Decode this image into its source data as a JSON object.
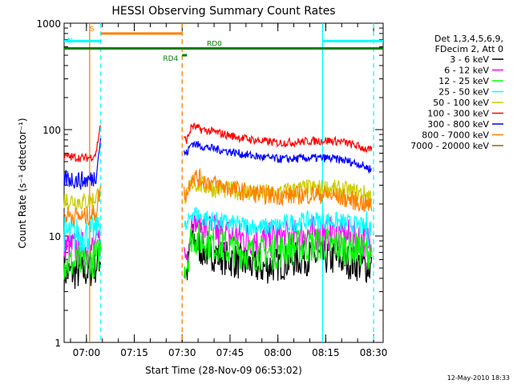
{
  "chart_data": {
    "type": "line",
    "title": "HESSI Observing Summary Count Rates",
    "xlabel": "Start Time (28-Nov-09 06:53:02)",
    "ylabel": "Count Rate (s⁻¹ detector⁻¹)",
    "yscale": "log",
    "ylim": [
      1,
      1000
    ],
    "xlim_minutes": [
      0,
      100
    ],
    "x_unit": "minutes after 06:53:02",
    "x_ticks": [
      {
        "t": 7.0,
        "label": "07:00"
      },
      {
        "t": 22.0,
        "label": "07:15"
      },
      {
        "t": 37.0,
        "label": "07:30"
      },
      {
        "t": 52.0,
        "label": "07:45"
      },
      {
        "t": 67.0,
        "label": "08:00"
      },
      {
        "t": 82.0,
        "label": "08:15"
      },
      {
        "t": 97.0,
        "label": "08:30"
      }
    ],
    "y_ticks": [
      1,
      10,
      100,
      1000
    ],
    "y_tick_labels": [
      "1",
      "10",
      "100",
      "1000"
    ],
    "legend": {
      "position": "right",
      "header": [
        "Det 1,3,4,5,6,9,",
        "FDecim 2, Att 0"
      ]
    },
    "series": [
      {
        "name": "3 - 6 keV",
        "color": "#000000",
        "x": [
          0,
          3,
          6,
          8.5,
          10,
          11.5,
          37.5,
          38.5,
          40,
          43,
          47,
          52,
          57,
          62,
          67,
          72,
          77,
          82,
          87,
          92,
          96.5
        ],
        "y": [
          4.5,
          4.5,
          4.6,
          4.8,
          5.2,
          6.5,
          null,
          4.5,
          9.5,
          7.5,
          6.8,
          6.0,
          5.5,
          5.0,
          5.5,
          6.0,
          6.3,
          6.3,
          6.0,
          5.5,
          5.0
        ]
      },
      {
        "name": "6 - 12 keV",
        "color": "#ff00ff",
        "x": [
          0,
          3,
          6,
          8.5,
          10,
          11.5,
          37.5,
          38.5,
          40,
          43,
          47,
          52,
          57,
          62,
          67,
          72,
          77,
          82,
          87,
          92,
          96.5
        ],
        "y": [
          8.0,
          7.8,
          7.6,
          7.5,
          8.0,
          9.5,
          null,
          6.5,
          14,
          12,
          11,
          10,
          9.5,
          9.0,
          9.5,
          10,
          10.5,
          10.5,
          10,
          9.5,
          9.0
        ]
      },
      {
        "name": "12 - 25 keV",
        "color": "#00ff00",
        "x": [
          0,
          3,
          6,
          8.5,
          10,
          11.5,
          37.5,
          38.5,
          40,
          43,
          47,
          52,
          57,
          62,
          67,
          72,
          77,
          82,
          87,
          92,
          96.5
        ],
        "y": [
          5.5,
          5.5,
          5.6,
          5.8,
          6.2,
          7.5,
          null,
          5.5,
          10,
          9.0,
          8.5,
          7.5,
          7.0,
          6.8,
          7.2,
          7.8,
          8.2,
          8.3,
          8.0,
          7.5,
          7.0
        ]
      },
      {
        "name": "25 - 50 keV",
        "color": "#00ffff",
        "x": [
          0,
          3,
          6,
          8.5,
          10,
          11.5,
          37.5,
          38.5,
          40,
          43,
          47,
          52,
          57,
          62,
          67,
          72,
          77,
          82,
          87,
          92,
          96.5
        ],
        "y": [
          10.5,
          10.3,
          10.2,
          10.5,
          11.5,
          14,
          null,
          12,
          17,
          15,
          14,
          13,
          12.5,
          12,
          12.5,
          13.5,
          14,
          14,
          13.5,
          12.5,
          11.5
        ]
      },
      {
        "name": "50 - 100 keV",
        "color": "#cccc00",
        "x": [
          0,
          3,
          6,
          8.5,
          10,
          11.5,
          37.5,
          38.5,
          40,
          43,
          47,
          52,
          57,
          62,
          67,
          72,
          77,
          82,
          87,
          92,
          96.5
        ],
        "y": [
          22,
          21.5,
          21,
          21.5,
          23,
          28,
          null,
          23,
          32,
          30,
          28,
          27,
          26,
          25,
          25.5,
          27,
          28,
          28,
          27,
          25.5,
          24
        ]
      },
      {
        "name": "100 - 300 keV",
        "color": "#ff0000",
        "x": [
          0,
          3,
          6,
          8.5,
          10,
          11.5,
          37.5,
          38.5,
          40,
          43,
          47,
          52,
          57,
          62,
          67,
          72,
          77,
          82,
          87,
          92,
          96.5
        ],
        "y": [
          56,
          55,
          54,
          55,
          60,
          120,
          null,
          80,
          108,
          100,
          95,
          88,
          82,
          78,
          75,
          76,
          78,
          79,
          77,
          70,
          63
        ]
      },
      {
        "name": "300 - 800 keV",
        "color": "#0000ff",
        "x": [
          0,
          3,
          6,
          8.5,
          10,
          11.5,
          37.5,
          38.5,
          40,
          43,
          47,
          52,
          57,
          62,
          67,
          72,
          77,
          82,
          87,
          92,
          96.5
        ],
        "y": [
          35,
          34,
          33,
          34,
          37,
          85,
          null,
          60,
          75,
          70,
          66,
          62,
          58,
          55,
          53,
          53,
          54,
          54,
          52,
          48,
          42
        ]
      },
      {
        "name": "800 - 7000 keV",
        "color": "#ff8000",
        "x": [
          0,
          3,
          6,
          8.5,
          10,
          11.5,
          37.5,
          38.5,
          40,
          43,
          47,
          52,
          57,
          62,
          67,
          72,
          77,
          82,
          87,
          92,
          96.5
        ],
        "y": [
          16,
          15.5,
          15,
          15.5,
          17,
          30,
          null,
          25,
          37,
          34,
          31,
          28,
          26,
          24.5,
          24,
          24,
          24.5,
          24.5,
          23,
          21,
          19
        ]
      },
      {
        "name": "7000 - 20000 keV",
        "color": "#996600",
        "x": [],
        "y": []
      }
    ],
    "flags": [
      {
        "label": "S",
        "color": "#ff8000",
        "x_start": 11.5,
        "x_end": 37.0,
        "y_level": 800
      },
      {
        "label": "N",
        "color": "#00ffff",
        "x_start": 0,
        "x_end": 11.5,
        "y_level": 680
      },
      {
        "label": "N",
        "color": "#00ffff",
        "x_start": 81.0,
        "x_end": 100,
        "y_level": 680
      },
      {
        "label": "RD0",
        "color": "#008000",
        "x_start": 0,
        "x_end": 100,
        "y_level": 580
      },
      {
        "label": "RD4",
        "color": "#008000",
        "x_start": 37.0,
        "x_end": 38.5,
        "y_level": 500
      }
    ],
    "vlines": [
      {
        "x": 11.5,
        "color": "#00ffff",
        "style": "dashed"
      },
      {
        "x": 37.0,
        "color": "#ff8000",
        "style": "dashed"
      },
      {
        "x": 97.0,
        "color": "#00ffff",
        "style": "dashed"
      },
      {
        "x": 8.0,
        "color": "#ff8000",
        "style": "solid"
      },
      {
        "x": 81.0,
        "color": "#00ffff",
        "style": "solid"
      }
    ]
  },
  "footer": {
    "timestamp": "12-May-2010 18:33"
  }
}
